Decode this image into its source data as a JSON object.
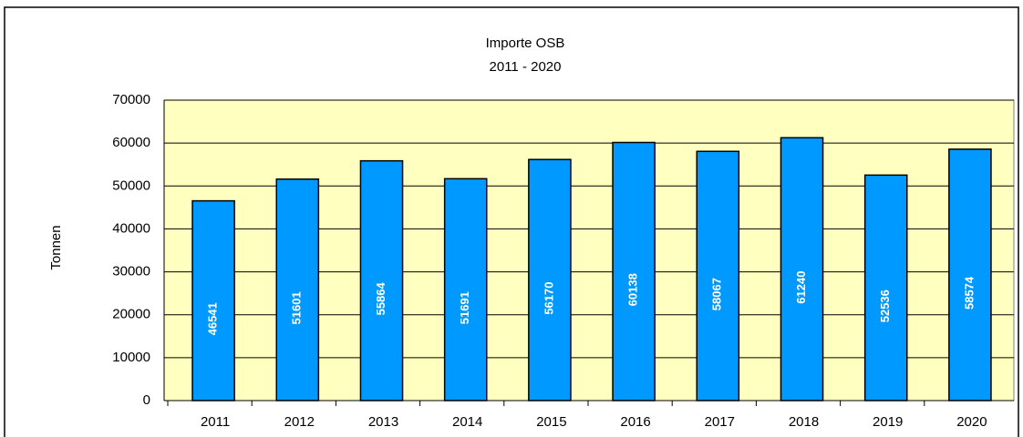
{
  "chart_data": {
    "type": "bar",
    "title": "Importe OSB",
    "subtitle": "2011 - 2020",
    "y_label": "Tonnen",
    "categories": [
      "2011",
      "2012",
      "2013",
      "2014",
      "2015",
      "2016",
      "2017",
      "2018",
      "2019",
      "2020"
    ],
    "values": [
      46541,
      51601,
      55864,
      51691,
      56170,
      60138,
      58067,
      61240,
      52536,
      58574
    ],
    "color": "#0099ff",
    "ylim": [
      0,
      70000
    ],
    "yticks": [
      0,
      10000,
      20000,
      30000,
      40000,
      50000,
      60000,
      70000
    ],
    "grid": true
  }
}
